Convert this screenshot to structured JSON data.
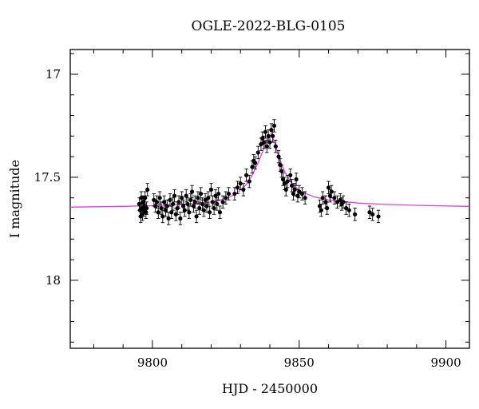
{
  "chart_data": {
    "type": "scatter",
    "title": "OGLE-2022-BLG-0105",
    "xlabel": "HJD - 2450000",
    "ylabel": "I magnitude",
    "xlim": [
      9772,
      9908
    ],
    "ylim": [
      18.33,
      16.88
    ],
    "y_inverted": true,
    "x_major_ticks": [
      9800,
      9850,
      9900
    ],
    "x_tick_labels": [
      "9800",
      "9850",
      "9900"
    ],
    "y_major_ticks": [
      17,
      17.5,
      18
    ],
    "y_tick_labels": [
      "17",
      "17.5",
      "18"
    ],
    "grid": false,
    "legend": "none",
    "colors": {
      "points": "#000000",
      "model": "#e23ee8",
      "frame": "#000000"
    },
    "series": [
      {
        "type": "scatter",
        "x": [
          9795.5,
          9795.8,
          9796.0,
          9796.2,
          9796.4,
          9796.6,
          9796.8,
          9797.0,
          9797.2,
          9797.5,
          9797.8,
          9798.0,
          9798.3,
          9800.5,
          9801.0,
          9801.5,
          9802.0,
          9802.5,
          9803.0,
          9803.5,
          9804.0,
          9804.5,
          9805.0,
          9805.5,
          9806.0,
          9806.5,
          9807.0,
          9807.5,
          9808.0,
          9808.5,
          9809.0,
          9809.5,
          9810.0,
          9810.5,
          9811.0,
          9811.5,
          9812.0,
          9812.5,
          9813.0,
          9813.5,
          9814.0,
          9814.5,
          9815.0,
          9815.5,
          9816.0,
          9816.5,
          9817.0,
          9817.5,
          9818.0,
          9818.5,
          9819.0,
          9819.5,
          9820.0,
          9820.5,
          9821.0,
          9821.5,
          9822.0,
          9822.5,
          9823.0,
          9824.0,
          9825.0,
          9826.0,
          9828.0,
          9829.0,
          9830.0,
          9831.0,
          9832.0,
          9833.0,
          9834.0,
          9834.5,
          9835.0,
          9836.0,
          9837.0,
          9837.5,
          9838.0,
          9838.5,
          9839.0,
          9839.5,
          9840.0,
          9840.5,
          9841.0,
          9841.5,
          9842.0,
          9843.0,
          9843.5,
          9844.0,
          9844.5,
          9845.0,
          9845.5,
          9846.0,
          9847.0,
          9847.5,
          9848.0,
          9848.5,
          9849.0,
          9849.5,
          9850.0,
          9851.0,
          9852.0,
          9857.0,
          9857.5,
          9858.0,
          9859.0,
          9859.5,
          9860.0,
          9860.5,
          9861.0,
          9862.0,
          9863.0,
          9864.0,
          9864.5,
          9865.0,
          9866.0,
          9867.0,
          9869.0,
          9874.0,
          9875.0,
          9877.0
        ],
        "y": [
          17.63,
          17.66,
          17.69,
          17.6,
          17.65,
          17.68,
          17.62,
          17.66,
          17.64,
          17.6,
          17.67,
          17.65,
          17.56,
          17.61,
          17.64,
          17.62,
          17.67,
          17.6,
          17.65,
          17.69,
          17.62,
          17.66,
          17.64,
          17.7,
          17.61,
          17.67,
          17.63,
          17.59,
          17.68,
          17.65,
          17.62,
          17.7,
          17.6,
          17.64,
          17.66,
          17.59,
          17.63,
          17.67,
          17.61,
          17.57,
          17.64,
          17.62,
          17.69,
          17.6,
          17.65,
          17.58,
          17.63,
          17.66,
          17.61,
          17.64,
          17.6,
          17.67,
          17.56,
          17.62,
          17.65,
          17.59,
          17.63,
          17.58,
          17.67,
          17.62,
          17.6,
          17.58,
          17.58,
          17.55,
          17.53,
          17.56,
          17.49,
          17.52,
          17.45,
          17.42,
          17.43,
          17.38,
          17.34,
          17.31,
          17.33,
          17.28,
          17.35,
          17.3,
          17.33,
          17.27,
          17.3,
          17.25,
          17.35,
          17.4,
          17.44,
          17.47,
          17.51,
          17.53,
          17.56,
          17.52,
          17.49,
          17.54,
          17.58,
          17.56,
          17.51,
          17.59,
          17.57,
          17.58,
          17.6,
          17.64,
          17.66,
          17.6,
          17.62,
          17.65,
          17.55,
          17.59,
          17.57,
          17.6,
          17.62,
          17.61,
          17.63,
          17.62,
          17.65,
          17.66,
          17.68,
          17.67,
          17.68,
          17.69
        ]
      },
      {
        "type": "line",
        "name": "model",
        "x": [
          9772,
          9790,
          9800,
          9810,
          9815,
          9820,
          9823,
          9826,
          9829,
          9832,
          9834,
          9836,
          9838,
          9839,
          9840,
          9841,
          9842,
          9843,
          9845,
          9847,
          9850,
          9855,
          9860,
          9870,
          9880,
          9895,
          9908
        ],
        "y": [
          17.645,
          17.641,
          17.638,
          17.632,
          17.628,
          17.62,
          17.612,
          17.598,
          17.575,
          17.535,
          17.49,
          17.43,
          17.36,
          17.32,
          17.295,
          17.31,
          17.35,
          17.4,
          17.47,
          17.52,
          17.565,
          17.595,
          17.61,
          17.625,
          17.632,
          17.638,
          17.641
        ]
      }
    ]
  }
}
